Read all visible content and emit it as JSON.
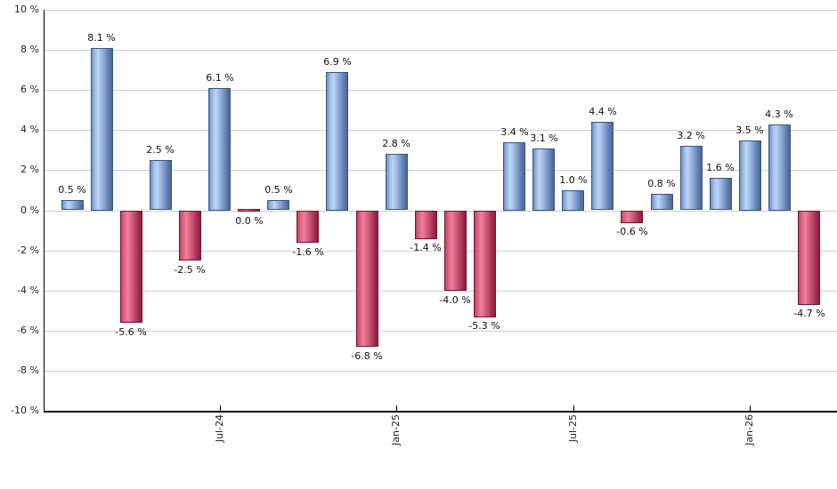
{
  "chart_data": {
    "type": "bar",
    "title": "",
    "description": "Monthly percent returns bar chart, blue for gains and red for losses",
    "unit": "%",
    "grid": "horizontal",
    "legend_position": "none",
    "y_axis": {
      "min": -10,
      "max": 10,
      "step": 2,
      "tick_labels": [
        "10 %",
        "8 %",
        "6 %",
        "4 %",
        "2 %",
        "0 %",
        "-2 %",
        "-4 %",
        "-6 %",
        "-8 %",
        "-10 %"
      ]
    },
    "x_axis": {
      "tick_labels": [
        {
          "bar_index": 5,
          "label": "Jul-24"
        },
        {
          "bar_index": 11,
          "label": "Jan-25"
        },
        {
          "bar_index": 17,
          "label": "Jul-25"
        },
        {
          "bar_index": 23,
          "label": "Jan-26"
        }
      ]
    },
    "bars": [
      {
        "value": 0.5,
        "label": "0.5 %",
        "sign": "positive"
      },
      {
        "value": 8.1,
        "label": "8.1 %",
        "sign": "positive"
      },
      {
        "value": -5.6,
        "label": "-5.6 %",
        "sign": "negative"
      },
      {
        "value": 2.5,
        "label": "2.5 %",
        "sign": "positive"
      },
      {
        "value": -2.5,
        "label": "-2.5 %",
        "sign": "negative"
      },
      {
        "value": 6.1,
        "label": "6.1 %",
        "sign": "positive"
      },
      {
        "value": 0.0,
        "label": "0.0 %",
        "sign": "negative"
      },
      {
        "value": 0.5,
        "label": "0.5 %",
        "sign": "positive"
      },
      {
        "value": -1.6,
        "label": "-1.6 %",
        "sign": "negative"
      },
      {
        "value": 6.9,
        "label": "6.9 %",
        "sign": "positive"
      },
      {
        "value": -6.8,
        "label": "-6.8 %",
        "sign": "negative"
      },
      {
        "value": 2.8,
        "label": "2.8 %",
        "sign": "positive"
      },
      {
        "value": -1.4,
        "label": "-1.4 %",
        "sign": "negative"
      },
      {
        "value": -4.0,
        "label": "-4.0 %",
        "sign": "negative"
      },
      {
        "value": -5.3,
        "label": "-5.3 %",
        "sign": "negative"
      },
      {
        "value": 3.4,
        "label": "3.4 %",
        "sign": "positive"
      },
      {
        "value": 3.1,
        "label": "3.1 %",
        "sign": "positive"
      },
      {
        "value": 1.0,
        "label": "1.0 %",
        "sign": "positive"
      },
      {
        "value": 4.4,
        "label": "4.4 %",
        "sign": "positive"
      },
      {
        "value": -0.6,
        "label": "-0.6 %",
        "sign": "negative"
      },
      {
        "value": 0.8,
        "label": "0.8 %",
        "sign": "positive"
      },
      {
        "value": 3.2,
        "label": "3.2 %",
        "sign": "positive"
      },
      {
        "value": 1.6,
        "label": "1.6 %",
        "sign": "positive"
      },
      {
        "value": 3.5,
        "label": "3.5 %",
        "sign": "positive"
      },
      {
        "value": 4.3,
        "label": "4.3 %",
        "sign": "positive"
      },
      {
        "value": -4.7,
        "label": "-4.7 %",
        "sign": "negative"
      }
    ],
    "colors": {
      "positive_main": "#87a7d8",
      "positive_highlight": "#bcd4f4",
      "positive_dark": "#4e6794",
      "negative_main": "#c84a6a",
      "negative_highlight": "#f07e9a",
      "negative_dark": "#8c1f3f",
      "grid": "#cfcfcf",
      "axis": "#000000",
      "label_text": "#111111"
    }
  }
}
